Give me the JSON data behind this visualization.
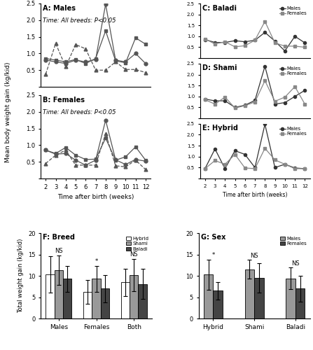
{
  "weeks": [
    2,
    3,
    4,
    5,
    6,
    7,
    8,
    9,
    10,
    11,
    12
  ],
  "A_baladi": [
    0.8,
    0.75,
    0.7,
    0.8,
    0.75,
    0.82,
    2.48,
    0.8,
    0.75,
    1.0,
    0.7
  ],
  "A_shami": [
    0.85,
    0.8,
    0.75,
    0.82,
    0.7,
    0.85,
    1.68,
    0.78,
    0.72,
    1.47,
    1.28
  ],
  "A_hybrid": [
    0.38,
    1.3,
    0.6,
    1.27,
    1.14,
    0.5,
    0.5,
    0.75,
    0.52,
    0.52,
    0.43
  ],
  "B_baladi": [
    0.85,
    0.73,
    0.75,
    0.55,
    0.4,
    0.55,
    1.75,
    0.56,
    0.42,
    0.57,
    0.52
  ],
  "B_shami": [
    0.85,
    0.75,
    0.93,
    0.7,
    0.57,
    0.58,
    1.21,
    0.55,
    0.65,
    0.95,
    0.55
  ],
  "B_hybrid": [
    0.45,
    0.7,
    0.85,
    0.4,
    0.4,
    0.4,
    1.35,
    0.38,
    0.35,
    0.55,
    0.27
  ],
  "C_males": [
    0.85,
    0.72,
    0.72,
    0.8,
    0.75,
    0.82,
    1.18,
    0.78,
    0.33,
    1.0,
    0.7
  ],
  "C_females": [
    0.88,
    0.65,
    0.75,
    0.52,
    0.57,
    0.82,
    1.68,
    0.7,
    0.55,
    0.55,
    0.5
  ],
  "D_males": [
    0.88,
    0.8,
    0.8,
    0.5,
    0.6,
    0.82,
    2.38,
    0.65,
    0.72,
    1.0,
    1.28
  ],
  "D_females": [
    0.85,
    0.65,
    0.97,
    0.47,
    0.58,
    0.75,
    1.72,
    0.78,
    0.97,
    1.45,
    0.65
  ],
  "E_males": [
    0.45,
    1.35,
    0.45,
    1.27,
    1.1,
    0.5,
    2.48,
    0.5,
    0.65,
    0.48,
    0.45
  ],
  "E_females": [
    0.45,
    0.82,
    0.65,
    1.1,
    0.48,
    0.45,
    1.38,
    0.85,
    0.65,
    0.45,
    0.45
  ],
  "F_categories": [
    "Males",
    "Females",
    "Both"
  ],
  "F_hybrid_vals": [
    10.3,
    6.3,
    8.5
  ],
  "F_shami_vals": [
    11.3,
    9.3,
    10.2
  ],
  "F_baladi_vals": [
    9.3,
    7.0,
    8.1
  ],
  "F_hybrid_errs": [
    4.3,
    2.8,
    3.2
  ],
  "F_shami_errs": [
    3.5,
    3.0,
    3.8
  ],
  "F_baladi_errs": [
    3.0,
    3.2,
    3.5
  ],
  "F_annotations": [
    "NS",
    "*",
    "NS"
  ],
  "G_categories": [
    "Hybrid",
    "Shami",
    "Baladi"
  ],
  "G_males_vals": [
    10.3,
    11.5,
    9.4
  ],
  "G_females_vals": [
    6.5,
    9.5,
    7.0
  ],
  "G_males_errs": [
    3.5,
    2.2,
    2.5
  ],
  "G_females_errs": [
    2.0,
    3.5,
    3.0
  ],
  "G_annotations": [
    "*",
    "NS",
    "NS"
  ],
  "color_white": "#ffffff",
  "color_lgray": "#999999",
  "color_dgray": "#444444",
  "color_black": "#111111",
  "ylim_line": [
    0,
    2.5
  ],
  "ylim_bar": [
    0,
    20
  ],
  "yticks_line": [
    0.0,
    0.5,
    1.0,
    1.5,
    2.0,
    2.5
  ],
  "yticks_bar": [
    0,
    5,
    10,
    15,
    20
  ]
}
